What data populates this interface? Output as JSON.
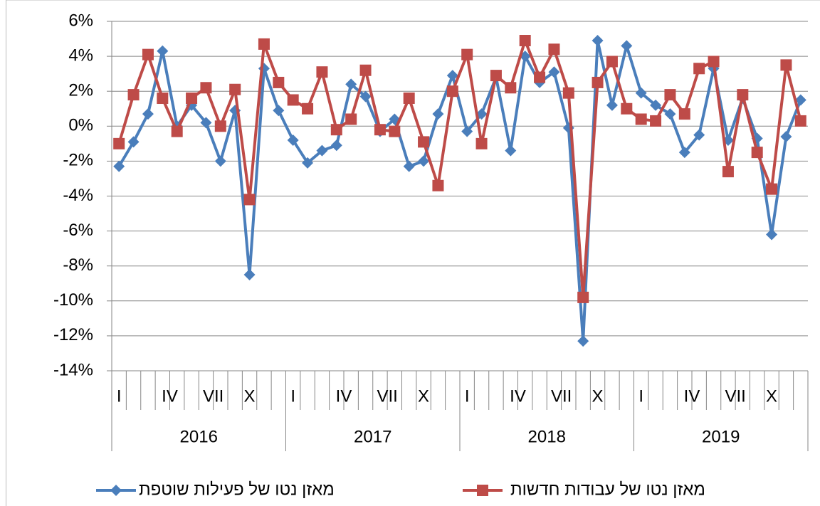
{
  "chart_data": {
    "type": "line",
    "categories": [
      "I",
      null,
      null,
      "IV",
      null,
      null,
      "VII",
      null,
      null,
      "X",
      null,
      null,
      "I",
      null,
      null,
      "IV",
      null,
      null,
      "VII",
      null,
      null,
      "X",
      null,
      null,
      "I",
      null,
      null,
      "IV",
      null,
      null,
      "VII",
      null,
      null,
      "X",
      null,
      null,
      "I",
      null,
      null,
      "IV",
      null,
      null,
      "VII",
      null,
      null,
      "X",
      null,
      null
    ],
    "category_groups": [
      "2016",
      "2017",
      "2018",
      "2019"
    ],
    "series": [
      {
        "name": "מאזן נטו של פעילות שוטפת",
        "color": "#4a7ebb",
        "marker": "diamond",
        "values": [
          -2.3,
          -0.9,
          0.7,
          4.3,
          0,
          1.2,
          0.2,
          -2.0,
          0.9,
          -8.5,
          3.3,
          0.9,
          -0.8,
          -2.1,
          -1.4,
          -1.1,
          2.4,
          1.7,
          -0.3,
          0.4,
          -2.3,
          -2.0,
          0.7,
          2.9,
          -0.3,
          0.7,
          2.8,
          -1.4,
          4.0,
          2.5,
          3.1,
          -0.1,
          -12.3,
          4.9,
          1.2,
          4.6,
          1.9,
          1.2,
          0.7,
          -1.5,
          -0.5,
          3.3,
          -0.8,
          1.6,
          -0.7,
          -6.2,
          -0.6,
          1.5
        ]
      },
      {
        "name": "מאזן נטו של עבודות חדשות",
        "color": "#be4b48",
        "marker": "square",
        "values": [
          -1.0,
          1.8,
          4.1,
          1.6,
          -0.3,
          1.6,
          2.2,
          0.0,
          2.1,
          -4.2,
          4.7,
          2.5,
          1.5,
          1.0,
          3.1,
          -0.2,
          0.4,
          3.2,
          -0.2,
          -0.3,
          1.6,
          -0.9,
          -3.4,
          2.0,
          4.1,
          -1.0,
          2.9,
          2.2,
          4.9,
          2.8,
          4.4,
          1.9,
          -9.8,
          2.5,
          3.7,
          1.0,
          0.4,
          0.3,
          1.8,
          0.7,
          3.3,
          3.7,
          -2.6,
          1.8,
          -1.5,
          -3.6,
          3.5,
          0.3
        ]
      }
    ],
    "ylim": [
      -14,
      6
    ],
    "yticks": [
      {
        "value": -14,
        "label": "-14%"
      },
      {
        "value": -12,
        "label": "-12%"
      },
      {
        "value": -10,
        "label": "-10%"
      },
      {
        "value": -8,
        "label": "-8%"
      },
      {
        "value": -6,
        "label": "-6%"
      },
      {
        "value": -4,
        "label": "-4%"
      },
      {
        "value": -2,
        "label": "-2%"
      },
      {
        "value": 0,
        "label": "0%"
      },
      {
        "value": 2,
        "label": "2%"
      },
      {
        "value": 4,
        "label": "4%"
      },
      {
        "value": 6,
        "label": "6%"
      }
    ],
    "grid": true,
    "legend": "bottom"
  }
}
